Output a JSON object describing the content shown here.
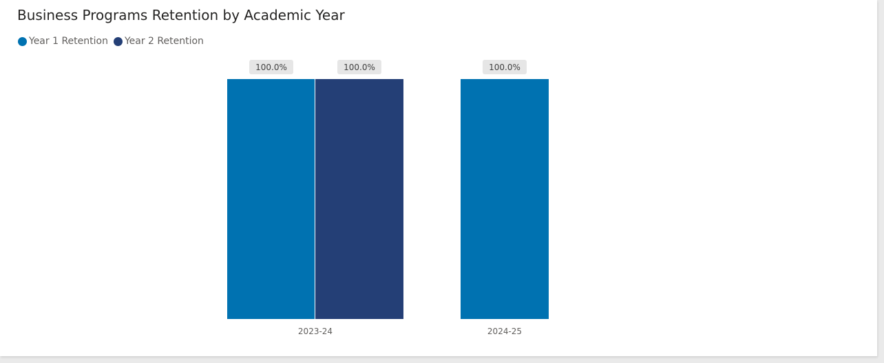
{
  "chart_data": {
    "type": "bar",
    "title": "Business Programs Retention by Academic Year",
    "categories": [
      "2023-24",
      "2024-25"
    ],
    "series": [
      {
        "name": "Year 1 Retention",
        "color": "#0072b1",
        "values": [
          100.0,
          100.0
        ]
      },
      {
        "name": "Year 2 Retention",
        "color": "#243f76",
        "values": [
          100.0,
          null
        ]
      }
    ],
    "data_labels": [
      [
        "100.0%",
        "100.0%"
      ],
      [
        "100.0%",
        null
      ]
    ],
    "ylim": [
      0,
      100
    ],
    "grid": false,
    "legend_position": "top-left"
  }
}
